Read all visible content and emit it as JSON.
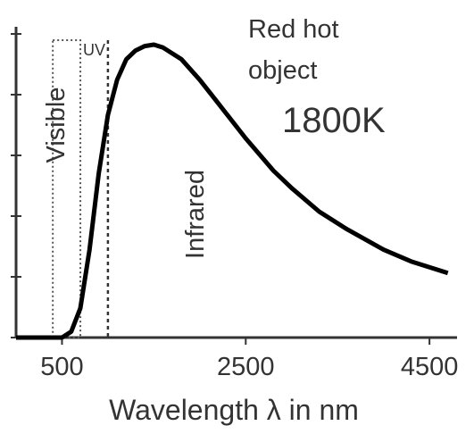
{
  "chart_data": {
    "type": "line",
    "xlabel": "Wavelength λ in nm",
    "ylabel": "",
    "xticks": [
      500,
      2500,
      4500
    ],
    "xlim": [
      0,
      4800
    ],
    "ylim": [
      0,
      1.0
    ],
    "grid": false,
    "series": [
      {
        "x": [
          0,
          500,
          600,
          700,
          800,
          900,
          1000,
          1100,
          1200,
          1300,
          1400,
          1500,
          1600,
          1800,
          2000,
          2200,
          2500,
          2800,
          3000,
          3300,
          3600,
          4000,
          4300,
          4700
        ],
        "y": [
          0,
          0,
          0.02,
          0.1,
          0.3,
          0.56,
          0.76,
          0.88,
          0.95,
          0.98,
          0.995,
          1.0,
          0.99,
          0.95,
          0.88,
          0.8,
          0.68,
          0.57,
          0.51,
          0.43,
          0.37,
          0.3,
          0.26,
          0.22
        ]
      }
    ],
    "regions": [
      {
        "label": "Visible",
        "x_range": [
          400,
          700
        ]
      },
      {
        "label": "UV",
        "x_range": [
          700,
          1000
        ]
      }
    ],
    "annotations": {
      "object": "Red hot object",
      "object_line1": "Red hot",
      "object_line2": "object",
      "temperature": "1800K",
      "infrared": "Infrared",
      "visible": "Visible",
      "uv": "UV"
    }
  }
}
